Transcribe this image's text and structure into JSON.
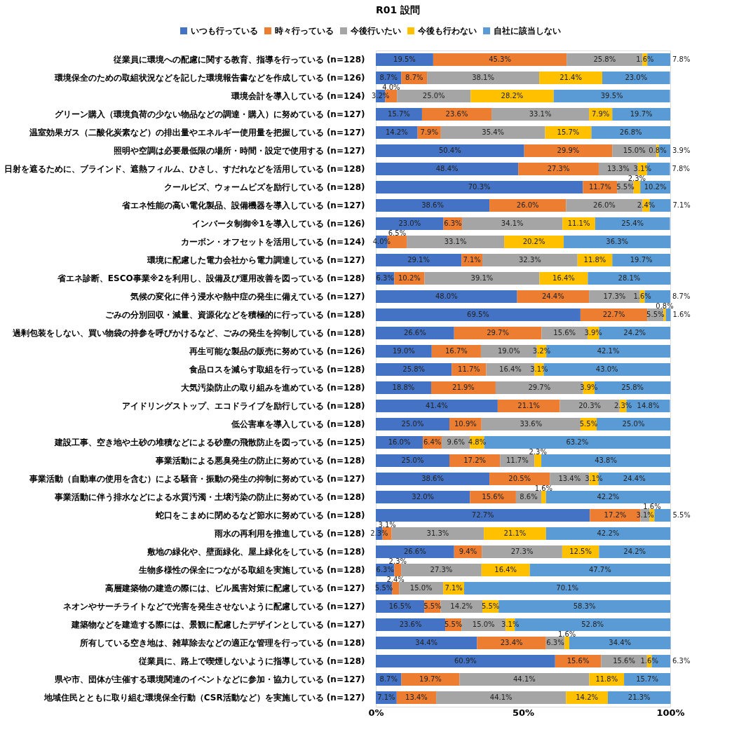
{
  "chart_data": {
    "type": "bar",
    "orientation": "horizontal",
    "stacked": true,
    "title": "R01  設問",
    "legend": "top",
    "categories": [
      "従業員に環境への配慮に関する教育、指導を行っている (n=128)",
      "環境保全のための取組状況などを記した環境報告書などを作成している (n=126)",
      "環境会計を導入している (n=124)",
      "グリーン購入（環境負荷の少ない物品などの調達・購入）に努めている (n=127)",
      "温室効果ガス（二酸化炭素など）の排出量やエネルギー使用量を把握している (n=127)",
      "照明や空調は必要最低限の場所・時間・設定で使用する (n=127)",
      "日射を遮るために、ブラインド、遮熱フィルム、ひさし、すだれなどを活用している (n=128)",
      "クールビズ、ウォームビズを励行している (n=128)",
      "省エネ性能の高い電化製品、設備機器を導入している (n=127)",
      "インバータ制御※1を導入している (n=126)",
      "カーボン・オフセットを活用している (n=124)",
      "環境に配慮した電力会社から電力調達している (n=127)",
      "省エネ診断、ESCO事業※2を利用し、設備及び運用改善を図っている (n=128)",
      "気候の変化に伴う浸水や熱中症の発生に備えている (n=127)",
      "ごみの分別回収・減量、資源化などを積極的に行っている (n=128)",
      "過剰包装をしない、買い物袋の持参を呼びかけるなど、ごみの発生を抑制している (n=128)",
      "再生可能な製品の販売に努めている (n=126)",
      "食品ロスを減らす取組を行っている (n=128)",
      "大気汚染防止の取り組みを進めている (n=128)",
      "アイドリングストップ、エコドライブを励行している (n=128)",
      "低公害車を導入している (n=128)",
      "建設工事、空き地や土砂の堆積などによる砂塵の飛散防止を図っている (n=125)",
      "事業活動による悪臭発生の防止に努めている (n=128)",
      "事業活動（自動車の使用を含む）による騒音・振動の発生の抑制に努めている (n=127)",
      "事業活動に伴う排水などによる水質汚濁・土壌汚染の防止に努めている (n=128)",
      "蛇口をこまめに閉めるなど節水に努めている (n=128)",
      "雨水の再利用を推進している (n=128)",
      "敷地の緑化や、壁面緑化、屋上緑化をしている (n=128)",
      "生物多様性の保全につながる取組を実施している (n=128)",
      "高層建築物の建造の際には、ビル風害対策に配慮している (n=127)",
      "ネオンやサーチライトなどで光害を発生させないように配慮している (n=127)",
      "建築物などを建造する際には、景観に配慮したデザインとしている (n=127)",
      "所有している空き地は、雑草除去などの適正な管理を行っている (n=128)",
      "従業員に、路上で喫煙しないように指導している (n=128)",
      "県や市、団体が主催する環境関連のイベントなどに参加・協力している (n=127)",
      "地域住民とともに取り組む環境保全行動（CSR活動など）を実施している (n=127)"
    ],
    "xlim": [
      0,
      100
    ],
    "xticks": [
      {
        "value": 0,
        "label": "0%"
      },
      {
        "value": 50,
        "label": "50%"
      },
      {
        "value": 100,
        "label": "100%"
      }
    ],
    "series": [
      {
        "name": "いつも行っている",
        "color": "#4472c4",
        "values": [
          19.5,
          8.7,
          3.2,
          15.7,
          14.2,
          50.4,
          48.4,
          70.3,
          38.6,
          23.0,
          4.0,
          29.1,
          6.3,
          48.0,
          69.5,
          26.6,
          19.0,
          25.8,
          18.8,
          41.4,
          25.0,
          16.0,
          25.0,
          38.6,
          32.0,
          72.7,
          2.3,
          26.6,
          6.3,
          5.5,
          16.5,
          23.6,
          34.4,
          60.9,
          8.7,
          7.1
        ],
        "value_labels": [
          "19.5%",
          "8.7%",
          "3.2%",
          "15.7%",
          "14.2%",
          "50.4%",
          "48.4%",
          "70.3%",
          "38.6%",
          "23.0%",
          "4.0%",
          "29.1%",
          "6.3%",
          "48.0%",
          "69.5%",
          "26.6%",
          "19.0%",
          "25.8%",
          "18.8%",
          "41.4%",
          "25.0%",
          "16.0%",
          "25.0%",
          "38.6%",
          "32.0%",
          "72.7%",
          "2.3%",
          "26.6%",
          "6.3%",
          "5.5%",
          "16.5%",
          "23.6%",
          "34.4%",
          "60.9%",
          "8.7%",
          "7.1%"
        ]
      },
      {
        "name": "時々行っている",
        "color": "#ed7d31",
        "values": [
          45.3,
          8.7,
          4.0,
          23.6,
          7.9,
          29.9,
          27.3,
          11.7,
          26.0,
          6.3,
          6.5,
          7.1,
          10.2,
          24.4,
          22.7,
          29.7,
          16.7,
          11.7,
          21.9,
          21.1,
          10.9,
          6.4,
          17.2,
          20.5,
          15.6,
          17.2,
          3.1,
          9.4,
          2.3,
          2.4,
          5.5,
          5.5,
          23.4,
          15.6,
          19.7,
          13.4
        ],
        "value_labels": [
          "45.3%",
          "8.7%",
          "4.0%",
          "23.6%",
          "7.9%",
          "29.9%",
          "27.3%",
          "11.7%",
          "26.0%",
          "6.3%",
          "6.5%",
          "7.1%",
          "10.2%",
          "24.4%",
          "22.7%",
          "29.7%",
          "16.7%",
          "11.7%",
          "21.9%",
          "21.1%",
          "10.9%",
          "6.4%",
          "17.2%",
          "20.5%",
          "15.6%",
          "17.2%",
          "3.1%",
          "9.4%",
          "2.3%",
          "2.4%",
          "5.5%",
          "5.5%",
          "23.4%",
          "15.6%",
          "19.7%",
          "13.4%"
        ]
      },
      {
        "name": "今後行いたい",
        "color": "#a5a5a5",
        "values": [
          25.8,
          38.1,
          25.0,
          33.1,
          35.4,
          15.0,
          13.3,
          5.5,
          26.0,
          34.1,
          33.1,
          32.3,
          39.1,
          17.3,
          5.5,
          15.6,
          19.0,
          16.4,
          29.7,
          20.3,
          33.6,
          9.6,
          11.7,
          13.4,
          8.6,
          3.1,
          31.3,
          27.3,
          27.3,
          15.0,
          14.2,
          15.0,
          6.3,
          15.6,
          44.1,
          44.1
        ],
        "value_labels": [
          "25.8%",
          "38.1%",
          "25.0%",
          "33.1%",
          "35.4%",
          "15.0%",
          "13.3%",
          "5.5%",
          "26.0%",
          "34.1%",
          "33.1%",
          "32.3%",
          "39.1%",
          "17.3%",
          "5.5%",
          "15.6%",
          "19.0%",
          "16.4%",
          "29.7%",
          "20.3%",
          "33.6%",
          "9.6%",
          "11.7%",
          "13.4%",
          "8.6%",
          "3.1%",
          "31.3%",
          "27.3%",
          "27.3%",
          "15.0%",
          "14.2%",
          "15.0%",
          "6.3%",
          "15.6%",
          "44.1%",
          "44.1%"
        ]
      },
      {
        "name": "今後も行わない",
        "color": "#ffc000",
        "values": [
          1.6,
          21.4,
          28.2,
          7.9,
          15.7,
          0.8,
          3.1,
          2.3,
          2.4,
          11.1,
          20.2,
          11.8,
          16.4,
          1.6,
          0.8,
          3.9,
          3.2,
          3.1,
          3.9,
          2.3,
          5.5,
          4.8,
          2.3,
          3.1,
          1.6,
          1.6,
          21.1,
          12.5,
          16.4,
          7.1,
          5.5,
          3.1,
          1.6,
          1.6,
          11.8,
          14.2
        ],
        "value_labels": [
          "1.6%",
          "21.4%",
          "28.2%",
          "7.9%",
          "15.7%",
          "0.8%",
          "3.1%",
          "2.3%",
          "2.4%",
          "11.1%",
          "20.2%",
          "11.8%",
          "16.4%",
          "1.6%",
          "0.8%",
          "3.9%",
          "3.2%",
          "3.1%",
          "3.9%",
          "2.3%",
          "5.5%",
          "4.8%",
          "2.3%",
          "3.1%",
          "1.6%",
          "1.6%",
          "21.1%",
          "12.5%",
          "16.4%",
          "7.1%",
          "5.5%",
          "3.1%",
          "1.6%",
          "1.6%",
          "11.8%",
          "14.2%"
        ]
      },
      {
        "name": "自社に該当しない",
        "color": "#5b9bd5",
        "values": [
          7.8,
          23.0,
          39.5,
          19.7,
          26.8,
          3.9,
          7.8,
          10.2,
          7.1,
          25.4,
          36.3,
          19.7,
          28.1,
          8.7,
          1.6,
          24.2,
          42.1,
          43.0,
          25.8,
          14.8,
          25.0,
          63.2,
          43.8,
          24.4,
          42.2,
          5.5,
          42.2,
          24.2,
          47.7,
          70.1,
          58.3,
          52.8,
          34.4,
          6.3,
          15.7,
          21.3
        ],
        "value_labels": [
          "7.8%",
          "23.0%",
          "39.5%",
          "19.7%",
          "26.8%",
          "3.9%",
          "7.8%",
          "10.2%",
          "7.1%",
          "25.4%",
          "36.3%",
          "19.7%",
          "28.1%",
          "8.7%",
          "1.6%",
          "24.2%",
          "42.1%",
          "43.0%",
          "25.8%",
          "14.8%",
          "25.0%",
          "63.2%",
          "43.8%",
          "24.4%",
          "42.2%",
          "5.5%",
          "42.2%",
          "24.2%",
          "47.7%",
          "70.1%",
          "58.3%",
          "52.8%",
          "34.4%",
          "6.3%",
          "15.7%",
          "21.3%"
        ]
      }
    ]
  }
}
